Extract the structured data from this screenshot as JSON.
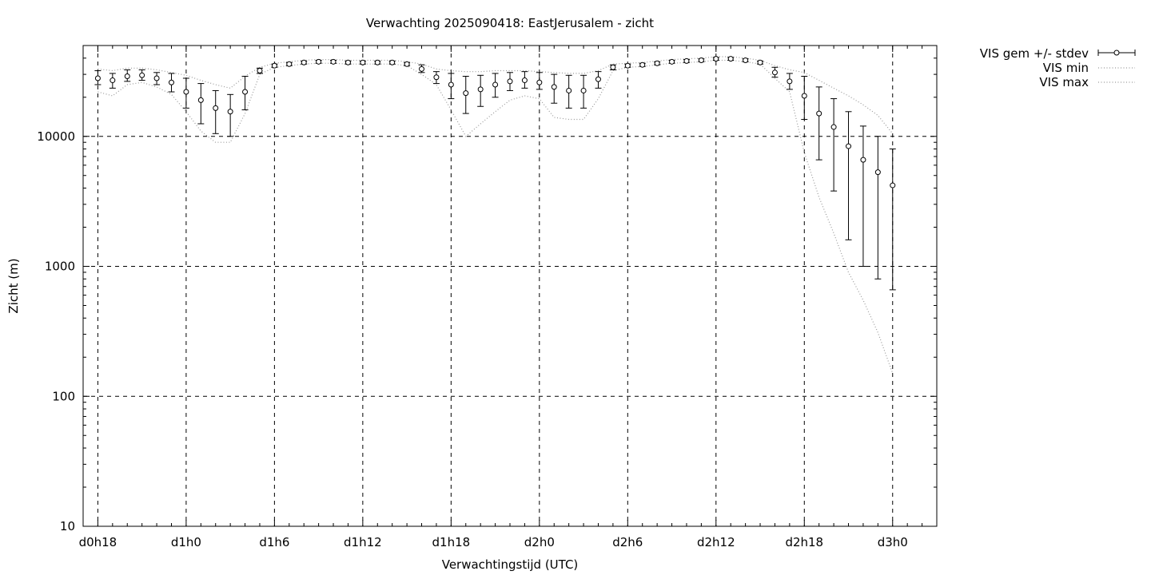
{
  "chart_data": {
    "type": "line",
    "title": "Verwachting 2025090418: EastJerusalem - zicht",
    "xlabel": "Verwachtingstijd (UTC)",
    "ylabel": "Zicht (m)",
    "yscale": "log",
    "ylim": [
      10,
      50000
    ],
    "xlim_hours": [
      -1,
      57
    ],
    "x_ticks": [
      {
        "hour": 0,
        "label": "d0h18"
      },
      {
        "hour": 6,
        "label": "d1h0"
      },
      {
        "hour": 12,
        "label": "d1h6"
      },
      {
        "hour": 18,
        "label": "d1h12"
      },
      {
        "hour": 24,
        "label": "d1h18"
      },
      {
        "hour": 30,
        "label": "d2h0"
      },
      {
        "hour": 36,
        "label": "d2h6"
      },
      {
        "hour": 42,
        "label": "d2h12"
      },
      {
        "hour": 48,
        "label": "d2h18"
      },
      {
        "hour": 54,
        "label": "d3h0"
      }
    ],
    "y_ticks": [
      {
        "value": 10,
        "label": "10"
      },
      {
        "value": 100,
        "label": "100"
      },
      {
        "value": 1000,
        "label": "1000"
      },
      {
        "value": 10000,
        "label": "10000"
      }
    ],
    "grid": true,
    "legend_position": "outside-top-right",
    "legend": [
      {
        "label": "VIS gem +/- stdev",
        "style": "errorbars"
      },
      {
        "label": "VIS min",
        "style": "dotted"
      },
      {
        "label": "VIS max",
        "style": "dotted"
      }
    ],
    "series": [
      {
        "name": "VIS gem +/- stdev",
        "x": [
          0,
          1,
          2,
          3,
          4,
          5,
          6,
          7,
          8,
          9,
          10,
          11,
          12,
          13,
          14,
          15,
          16,
          17,
          18,
          19,
          20,
          21,
          22,
          23,
          24,
          25,
          26,
          27,
          28,
          29,
          30,
          31,
          32,
          33,
          34,
          35,
          36,
          37,
          38,
          39,
          40,
          41,
          42,
          43,
          44,
          45,
          46,
          47,
          48,
          49,
          50,
          51,
          52,
          53,
          54
        ],
        "mean": [
          28000,
          27000,
          29000,
          29500,
          28000,
          26000,
          22000,
          19000,
          16500,
          15500,
          22000,
          32000,
          35000,
          36000,
          37000,
          37500,
          37500,
          37000,
          37000,
          37000,
          37000,
          36000,
          33000,
          28500,
          25000,
          21500,
          23000,
          25000,
          26500,
          27000,
          26000,
          24000,
          22500,
          22500,
          27500,
          34000,
          35000,
          35500,
          36500,
          37500,
          38000,
          38500,
          39500,
          39500,
          38500,
          37000,
          31000,
          26500,
          20500,
          15000,
          11800,
          8400,
          6600,
          5300,
          4200
        ],
        "std_low": [
          25000,
          23500,
          26500,
          27000,
          25000,
          22000,
          16500,
          12500,
          10500,
          10000,
          16000,
          30500,
          34000,
          35000,
          36000,
          36500,
          36500,
          36000,
          36000,
          36000,
          36000,
          35000,
          31000,
          25500,
          19500,
          15000,
          17000,
          20000,
          22500,
          23500,
          23000,
          18000,
          16500,
          16500,
          23500,
          32500,
          34000,
          34500,
          35500,
          36500,
          37000,
          37500,
          38500,
          38500,
          37500,
          36000,
          28500,
          23000,
          13500,
          6600,
          3800,
          1600,
          1000,
          800,
          660
        ],
        "std_high": [
          32000,
          30500,
          32500,
          32500,
          31000,
          30500,
          28000,
          25500,
          22500,
          21000,
          29000,
          33500,
          36000,
          37000,
          38000,
          38500,
          38500,
          38000,
          38000,
          38000,
          38000,
          37000,
          35500,
          31500,
          30500,
          29000,
          29500,
          30500,
          31000,
          31500,
          31000,
          30000,
          29500,
          29500,
          31500,
          35500,
          36000,
          36500,
          37500,
          38500,
          39000,
          39500,
          40500,
          40500,
          39500,
          38000,
          34000,
          30500,
          29000,
          24000,
          19500,
          15500,
          12000,
          10000,
          8000
        ]
      },
      {
        "name": "VIS min",
        "x": [
          0,
          1,
          2,
          3,
          4,
          5,
          6,
          7,
          8,
          9,
          10,
          11,
          12,
          13,
          14,
          15,
          16,
          17,
          18,
          19,
          20,
          21,
          22,
          23,
          24,
          25,
          26,
          27,
          28,
          29,
          30,
          31,
          32,
          33,
          34,
          35,
          36,
          37,
          38,
          39,
          40,
          41,
          42,
          43,
          44,
          45,
          46,
          47,
          48,
          49,
          50,
          51,
          52,
          53,
          54
        ],
        "values": [
          22000,
          20500,
          25000,
          26000,
          24000,
          21000,
          15500,
          11000,
          9000,
          9000,
          15000,
          30000,
          34000,
          35000,
          36000,
          36500,
          36500,
          36000,
          36000,
          36000,
          36000,
          35000,
          30000,
          25000,
          16000,
          10000,
          12500,
          15500,
          19000,
          20500,
          19500,
          14000,
          13500,
          13500,
          19500,
          32000,
          34000,
          34500,
          35500,
          36500,
          37000,
          37500,
          38500,
          38500,
          37500,
          36000,
          28000,
          22000,
          7500,
          3400,
          1800,
          900,
          550,
          310,
          150
        ]
      },
      {
        "name": "VIS max",
        "x": [
          0,
          1,
          2,
          3,
          4,
          5,
          6,
          7,
          8,
          9,
          10,
          11,
          12,
          13,
          14,
          15,
          16,
          17,
          18,
          19,
          20,
          21,
          22,
          23,
          24,
          25,
          26,
          27,
          28,
          29,
          30,
          31,
          32,
          33,
          34,
          35,
          36,
          37,
          38,
          39,
          40,
          41,
          42,
          43,
          44,
          45,
          46,
          47,
          48,
          49,
          50,
          51,
          52,
          53,
          54
        ],
        "values": [
          33000,
          32000,
          33500,
          33500,
          32500,
          31000,
          29500,
          27000,
          25000,
          23500,
          29000,
          34000,
          36500,
          37500,
          38500,
          39000,
          39000,
          38500,
          38500,
          38500,
          38500,
          37500,
          36000,
          33000,
          32000,
          31500,
          31500,
          32000,
          32000,
          32000,
          31500,
          31000,
          30500,
          30500,
          32000,
          36000,
          36500,
          37000,
          38000,
          39000,
          39500,
          40000,
          41000,
          41000,
          40000,
          38500,
          35000,
          32500,
          31000,
          27000,
          23500,
          20500,
          17500,
          14500,
          10500
        ]
      }
    ]
  }
}
